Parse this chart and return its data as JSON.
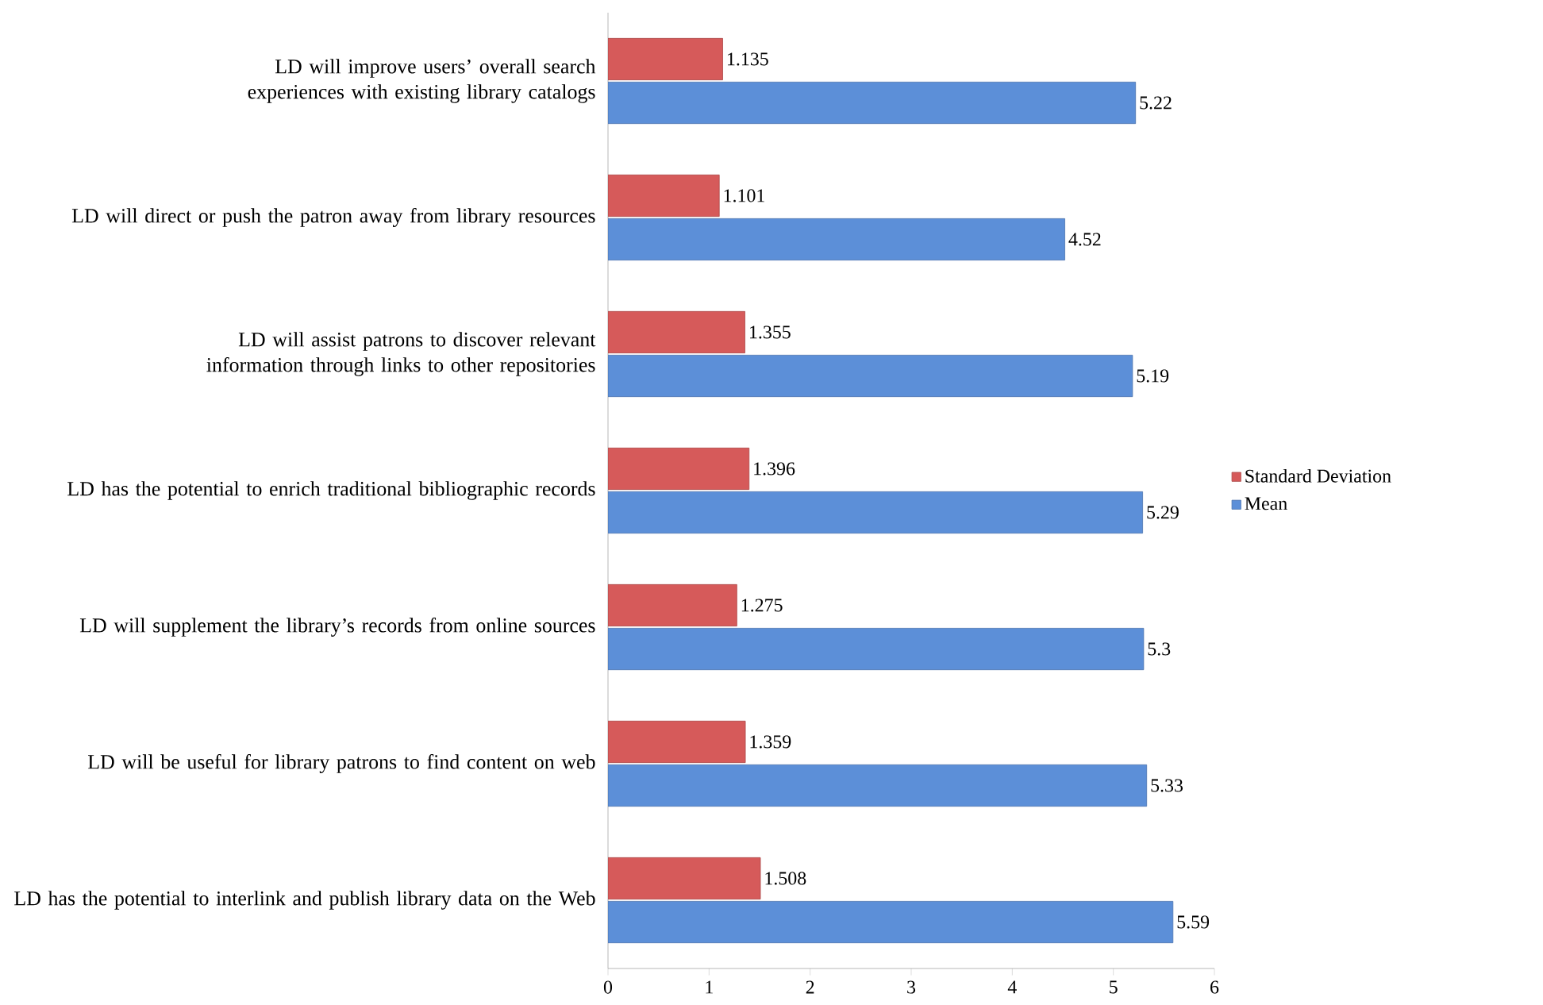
{
  "chart_data": {
    "type": "bar",
    "orientation": "horizontal",
    "categories": [
      "LD will improve users’ overall search experiences with existing library catalogs",
      "LD will direct or push the patron away from library resources",
      "LD will assist patrons to discover relevant information through links to other repositories",
      "LD has the potential to enrich traditional bibliographic records",
      "LD will supplement the library’s records from online sources",
      "LD will be useful for library patrons to find content on web",
      "LD has the potential to interlink and publish library data on the Web"
    ],
    "series": [
      {
        "name": "Standard Deviation",
        "color": "#d65a5a",
        "values": [
          1.135,
          1.101,
          1.355,
          1.396,
          1.275,
          1.359,
          1.508
        ]
      },
      {
        "name": "Mean",
        "color": "#5c8fd8",
        "values": [
          5.22,
          4.52,
          5.19,
          5.29,
          5.3,
          5.33,
          5.59
        ]
      }
    ],
    "xlim": [
      0,
      6
    ],
    "xticks": [
      0,
      1,
      2,
      3,
      4,
      5,
      6
    ],
    "data_labels": true,
    "legend": "right",
    "grid": false
  }
}
